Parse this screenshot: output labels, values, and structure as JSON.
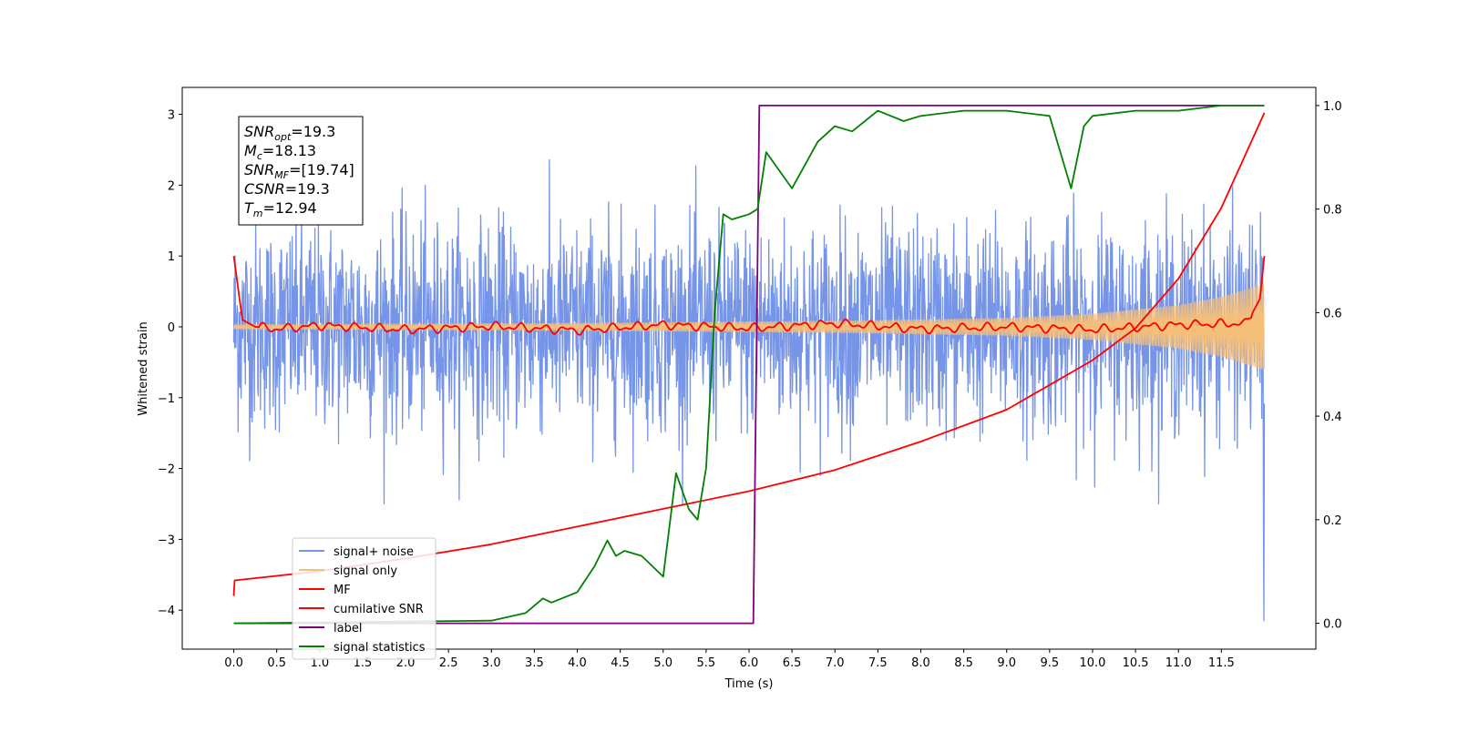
{
  "chart_data": {
    "type": "line",
    "xlabel": "Time (s)",
    "ylabel": "Whitened strain",
    "xlim": [
      -0.6,
      12.6
    ],
    "ylim": [
      -4.55,
      3.38
    ],
    "ylim_right": [
      -0.05,
      1.035
    ],
    "grid": false,
    "legend_position": "bottom-left",
    "x_ticks": [
      "0.0",
      "0.5",
      "1.0",
      "1.5",
      "2.0",
      "2.5",
      "3.0",
      "3.5",
      "4.0",
      "4.5",
      "5.0",
      "5.5",
      "6.0",
      "6.5",
      "7.0",
      "7.5",
      "8.0",
      "8.5",
      "9.0",
      "9.5",
      "10.0",
      "10.5",
      "11.0",
      "11.5"
    ],
    "y_ticks_left": [
      "3",
      "2",
      "1",
      "0",
      "−1",
      "−2",
      "−3",
      "−4"
    ],
    "y_ticks_right": [
      "1.0",
      "0.8",
      "0.6",
      "0.4",
      "0.2",
      "0.0"
    ],
    "annotation": [
      {
        "var": "SNR",
        "sub": "opt",
        "value": "=19.3"
      },
      {
        "var": "M",
        "sub": "c",
        "value": "=18.13"
      },
      {
        "var": "SNR",
        "sub": "MF",
        "value": "=[19.74]"
      },
      {
        "var": "CSNR",
        "sub": "",
        "value": "=19.3"
      },
      {
        "var": "T",
        "sub": "m",
        "value": "=12.94"
      }
    ],
    "legend": [
      {
        "label": "signal+ noise",
        "color": "#7695e8"
      },
      {
        "label": "signal only",
        "color": "#f5bf7a"
      },
      {
        "label": "MF",
        "color": "#ff0000"
      },
      {
        "label": "cumilative SNR",
        "color": "#ff0000"
      },
      {
        "label": "label",
        "color": "#800080"
      },
      {
        "label": "signal statistics",
        "color": "#008000"
      }
    ],
    "series": [
      {
        "name": "signal+ noise",
        "axis": "left",
        "color": "#7695e8",
        "style": "noise",
        "x_range": [
          0,
          12
        ],
        "amplitude_sigma": 0.72,
        "typical_range": [
          -2.5,
          2.6
        ]
      },
      {
        "name": "signal only",
        "axis": "left",
        "color": "#f5bf7a",
        "style": "chirp",
        "x_range": [
          0,
          12
        ],
        "envelope": {
          "x": [
            0,
            4,
            7,
            9,
            10,
            11,
            11.5,
            12
          ],
          "y": [
            0.03,
            0.05,
            0.08,
            0.12,
            0.18,
            0.3,
            0.42,
            0.6
          ]
        }
      },
      {
        "name": "MF",
        "axis": "left",
        "color": "#ff0000",
        "x": [
          0,
          0.1,
          0.25,
          0.5,
          1,
          2,
          3,
          4,
          5,
          6,
          7,
          8,
          9,
          10,
          11,
          11.8,
          11.95,
          12
        ],
        "y": [
          1.0,
          0.1,
          0.0,
          -0.03,
          0.02,
          -0.04,
          0.01,
          -0.05,
          0.03,
          -0.02,
          0.05,
          -0.03,
          0.0,
          -0.04,
          0.03,
          0.05,
          0.4,
          1.0
        ]
      },
      {
        "name": "cumilative SNR",
        "axis": "left",
        "color": "#ff0000",
        "x": [
          0,
          0.01,
          1,
          2,
          3,
          4,
          5,
          6,
          7,
          8,
          9,
          10,
          10.5,
          11,
          11.5,
          12
        ],
        "y": [
          -3.8,
          -3.58,
          -3.45,
          -3.27,
          -3.07,
          -2.82,
          -2.57,
          -2.32,
          -2.02,
          -1.62,
          -1.17,
          -0.47,
          -0.02,
          0.68,
          1.68,
          3.02
        ]
      },
      {
        "name": "label",
        "axis": "right",
        "color": "#800080",
        "x": [
          0,
          6.05,
          6.12,
          12
        ],
        "y": [
          0.0,
          0.0,
          1.0,
          1.0
        ]
      },
      {
        "name": "signal statistics",
        "axis": "right",
        "color": "#008000",
        "x": [
          0,
          3.0,
          3.4,
          3.6,
          3.7,
          4.0,
          4.2,
          4.35,
          4.45,
          4.55,
          4.75,
          5.0,
          5.15,
          5.3,
          5.4,
          5.5,
          5.6,
          5.7,
          5.8,
          6.0,
          6.1,
          6.2,
          6.5,
          6.8,
          7.0,
          7.2,
          7.5,
          7.8,
          8.0,
          8.5,
          9.0,
          9.5,
          9.75,
          9.9,
          10.0,
          10.5,
          11.0,
          11.5,
          12.0
        ],
        "y": [
          0.0,
          0.005,
          0.02,
          0.048,
          0.04,
          0.06,
          0.11,
          0.16,
          0.13,
          0.14,
          0.13,
          0.09,
          0.29,
          0.22,
          0.2,
          0.3,
          0.6,
          0.79,
          0.78,
          0.79,
          0.8,
          0.91,
          0.84,
          0.93,
          0.96,
          0.95,
          0.99,
          0.97,
          0.98,
          0.99,
          0.99,
          0.98,
          0.84,
          0.96,
          0.98,
          0.99,
          0.99,
          1.0,
          1.0
        ]
      }
    ]
  }
}
